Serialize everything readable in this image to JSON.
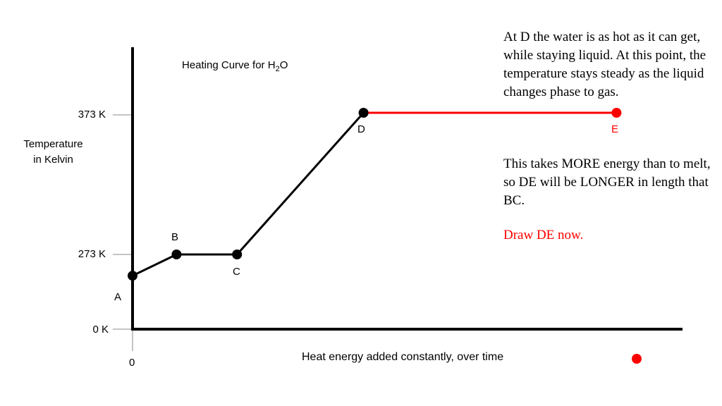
{
  "title": {
    "prefix": "Heating Curve for H",
    "sub": "2",
    "suffix": "O"
  },
  "y_axis_label": {
    "line1": "Temperature",
    "line2": "in Kelvin"
  },
  "y_ticks": [
    "373 K",
    "273 K",
    "0 K"
  ],
  "x_tick_zero": "0",
  "x_axis_label": "Heat energy added constantly, over time",
  "points": {
    "A": "A",
    "B": "B",
    "C": "C",
    "D": "D",
    "E": "E"
  },
  "notes": {
    "note1": "At D the water is as hot as it can get, while staying liquid.  At this point, the temperature stays steady as the liquid changes phase to gas.",
    "note2": "This takes MORE energy than to melt, so DE will be LONGER in length that BC.",
    "note3": "Draw DE now."
  },
  "colors": {
    "black": "#000000",
    "highlight": "#ff0000"
  },
  "chart_data": {
    "type": "line",
    "title": "Heating Curve for H2O",
    "ylabel": "Temperature in Kelvin",
    "xlabel": "Heat energy added constantly, over time",
    "y_ticks": [
      {
        "label": "373 K",
        "value": 373
      },
      {
        "label": "273 K",
        "value": 273
      },
      {
        "label": "0 K",
        "value": 0
      }
    ],
    "series": [
      {
        "name": "",
        "color": "#000000",
        "points": [
          {
            "label": "A",
            "x": 0.0,
            "y": 258
          },
          {
            "label": "B",
            "x": 0.8,
            "y": 273
          },
          {
            "label": "C",
            "x": 1.9,
            "y": 273
          },
          {
            "label": "D",
            "x": 4.2,
            "y": 373
          }
        ]
      },
      {
        "name": "",
        "color": "#ff0000",
        "points": [
          {
            "label": "D",
            "x": 4.2,
            "y": 373
          },
          {
            "label": "E",
            "x": 8.8,
            "y": 373
          }
        ]
      }
    ],
    "grid": false
  }
}
